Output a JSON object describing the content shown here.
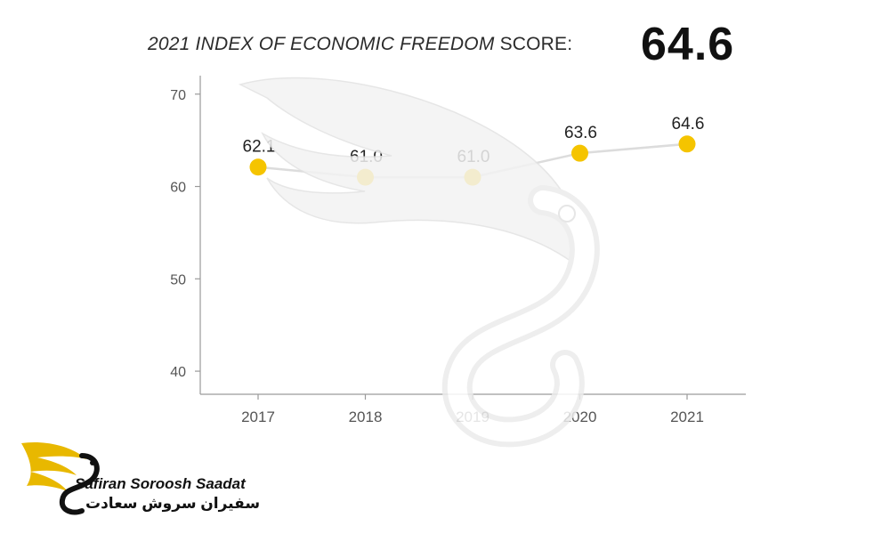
{
  "title": {
    "italic_part": "2021 INDEX OF ECONOMIC FREEDOM",
    "normal_part": " SCORE:"
  },
  "score": "64.6",
  "chart_data": {
    "type": "line",
    "categories": [
      "2017",
      "2018",
      "2019",
      "2020",
      "2021"
    ],
    "series": [
      {
        "values": [
          62.1,
          61.0,
          61.0,
          63.6,
          64.6
        ]
      }
    ],
    "data_labels": [
      "62.1",
      "61.0",
      "61.0",
      "63.6",
      "64.6"
    ],
    "y_ticks": [
      40,
      50,
      60,
      70
    ],
    "ylim": [
      37.5,
      72
    ],
    "grid": false,
    "colors": {
      "point": "#F5C400",
      "line": "#DCDCDC",
      "axis": "#9A9A9A",
      "tick_text": "#555555",
      "label_text": "#222222"
    }
  },
  "logo": {
    "english": "Safiran Soroosh Saadat",
    "persian": "سفیران سروش سعادت",
    "icon": "gold-wing-s-logo-icon",
    "colors": {
      "wing": "#E8B800",
      "text": "#111111"
    }
  },
  "watermark": {
    "icon": "wing-s-watermark-icon"
  }
}
